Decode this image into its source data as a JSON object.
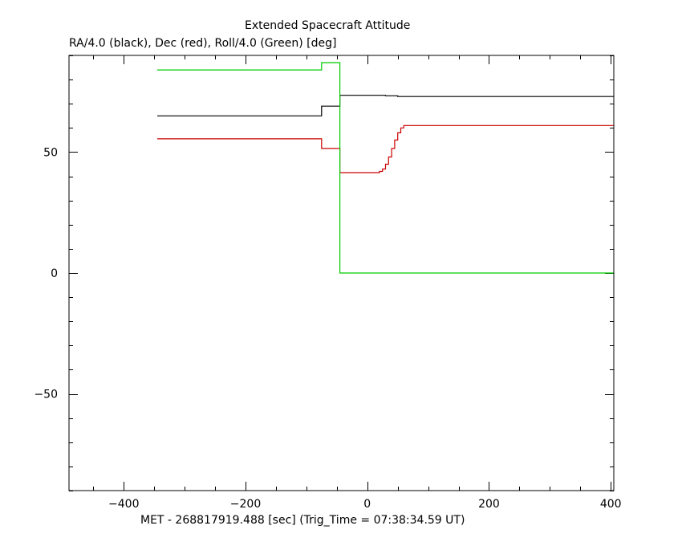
{
  "chart_data": {
    "type": "line",
    "title": "Extended Spacecraft Attitude",
    "subtitle": "RA/4.0 (black), Dec (red), Roll/4.0 (Green) [deg]",
    "xlabel": "MET - 268817919.488 [sec] (Trig_Time = 07:38:34.59 UT)",
    "ylabel": "",
    "xlim": [
      -490,
      405
    ],
    "ylim": [
      -90,
      90
    ],
    "x_major_ticks": [
      -400,
      -200,
      0,
      200,
      400
    ],
    "y_major_ticks": [
      -50,
      0,
      50
    ],
    "x_tick_labels": [
      "−400",
      "−200",
      "0",
      "200",
      "400"
    ],
    "y_tick_labels": [
      "−50",
      "0",
      "50"
    ],
    "x_minor_step": 50,
    "y_minor_step": 10,
    "grid": false,
    "series": [
      {
        "color": "#000000",
        "step": true,
        "x": [
          -345,
          -75,
          -75,
          -45,
          -45,
          30,
          30,
          50,
          50,
          405
        ],
        "y": [
          65,
          65,
          69,
          69,
          73.5,
          73.5,
          73.3,
          73.3,
          73,
          73
        ]
      },
      {
        "color": "#cc0000",
        "step": true,
        "x": [
          -345,
          -75,
          -75,
          -45,
          -45,
          15,
          20,
          25,
          30,
          35,
          40,
          45,
          50,
          55,
          60,
          405
        ],
        "y": [
          55.5,
          55.5,
          51.5,
          51.5,
          41.5,
          41.5,
          42,
          43,
          45,
          48,
          51.5,
          55,
          58,
          60,
          61,
          61
        ]
      },
      {
        "color": "#00cc00",
        "step": true,
        "x": [
          -345,
          -75,
          -75,
          -45,
          -45,
          405
        ],
        "y": [
          84,
          84,
          87,
          87,
          0,
          0
        ]
      }
    ]
  }
}
